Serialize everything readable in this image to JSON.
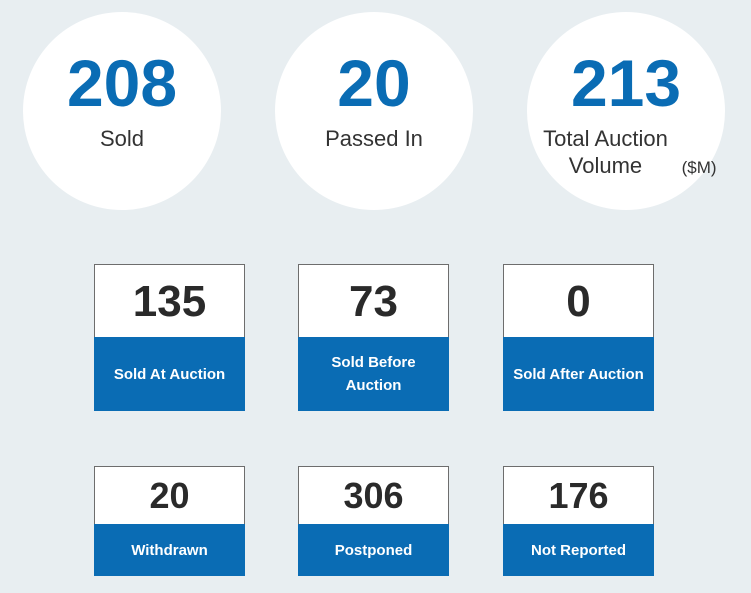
{
  "summary": [
    {
      "value": "208",
      "label": "Sold",
      "unit": ""
    },
    {
      "value": "20",
      "label": "Passed In",
      "unit": ""
    },
    {
      "value": "213",
      "label": "Total Auction Volume",
      "unit": "($M)"
    }
  ],
  "sold_breakdown": [
    {
      "value": "135",
      "label": "Sold At Auction"
    },
    {
      "value": "73",
      "label": "Sold Before Auction"
    },
    {
      "value": "0",
      "label": "Sold After Auction"
    }
  ],
  "other_results": [
    {
      "value": "20",
      "label": "Withdrawn"
    },
    {
      "value": "306",
      "label": "Postponed"
    },
    {
      "value": "176",
      "label": "Not Reported"
    }
  ],
  "colors": {
    "accent": "#0a6cb4",
    "background": "#e8eef1",
    "card": "#ffffff",
    "value_text": "#2a2a2a"
  }
}
